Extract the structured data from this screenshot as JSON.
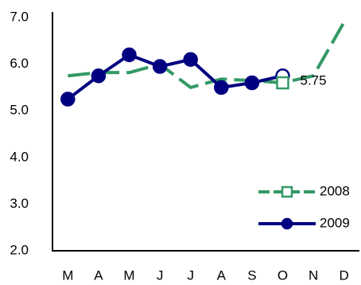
{
  "chart_data": {
    "type": "line",
    "categories": [
      "M",
      "A",
      "M",
      "J",
      "J",
      "A",
      "S",
      "O",
      "N",
      "D"
    ],
    "series": [
      {
        "name": "2008",
        "color": "#339966",
        "values": [
          5.75,
          5.82,
          5.82,
          6.0,
          5.5,
          5.68,
          5.65,
          5.6,
          5.75,
          6.9
        ]
      },
      {
        "name": "2009",
        "color": "#000080",
        "values": [
          5.25,
          5.75,
          6.2,
          5.95,
          6.1,
          5.5,
          5.6,
          5.75,
          null,
          null
        ]
      }
    ],
    "ylim": [
      2,
      7
    ],
    "yticks": [
      {
        "value": 2,
        "label": "2.0"
      },
      {
        "value": 3,
        "label": "3.0"
      },
      {
        "value": 4,
        "label": "4.0"
      },
      {
        "value": 5,
        "label": "5.0"
      },
      {
        "value": 6,
        "label": "6.0"
      },
      {
        "value": 7,
        "label": "7.0"
      }
    ],
    "grid": false,
    "legend": "lower right"
  }
}
